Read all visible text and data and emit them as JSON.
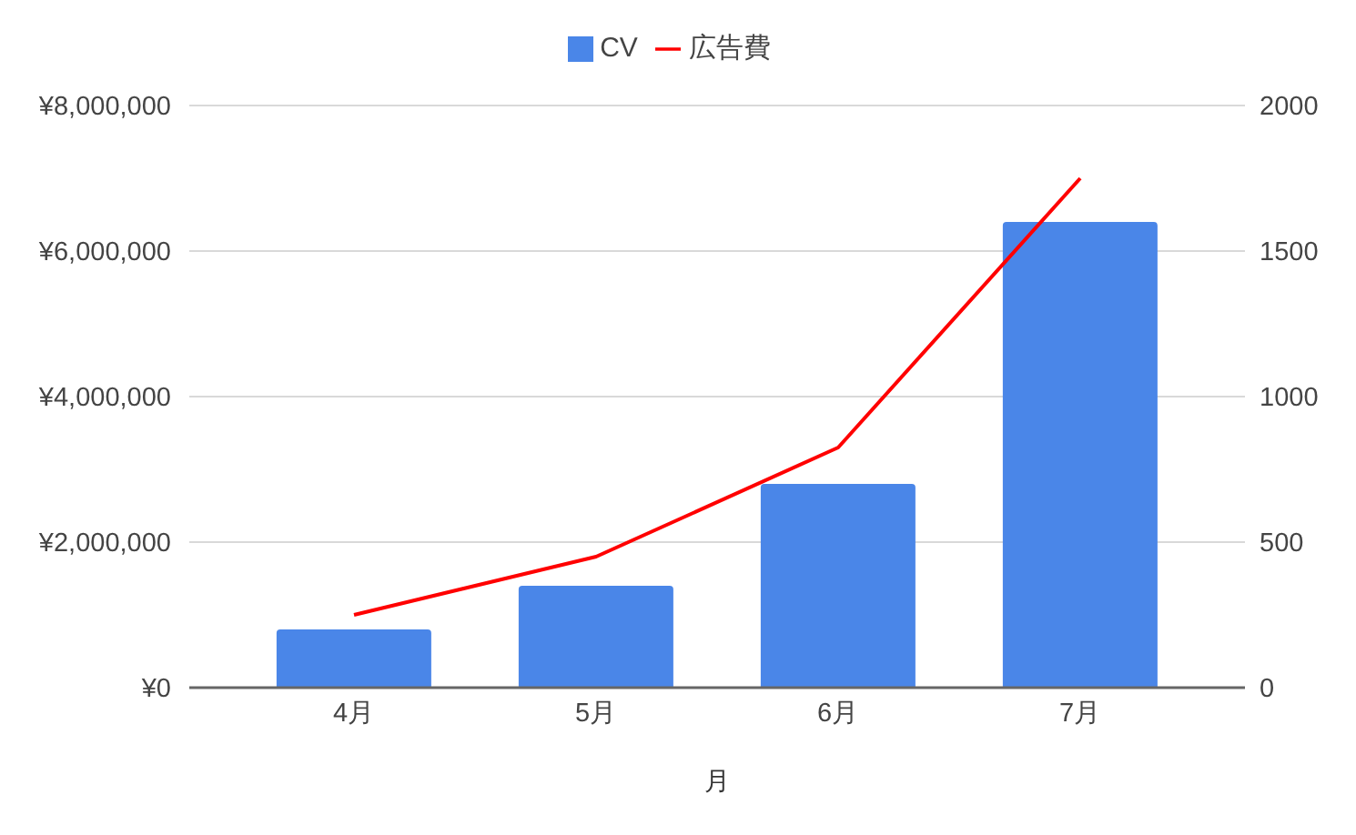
{
  "chart_data": {
    "type": "bar",
    "categories": [
      "4月",
      "5月",
      "6月",
      "7月"
    ],
    "xlabel": "月",
    "series": [
      {
        "name": "CV",
        "color": "#4a86e8",
        "axis": "y2",
        "values": [
          200,
          350,
          700,
          1600
        ]
      },
      {
        "name": "広告費",
        "type": "line",
        "color": "#ff0000",
        "values": [
          1000000,
          1800000,
          3300000,
          7000000
        ]
      }
    ],
    "ylim": [
      0,
      8000000
    ],
    "yticks": [
      {
        "value": 0,
        "label": "¥0"
      },
      {
        "value": 2000000,
        "label": "¥2,000,000"
      },
      {
        "value": 4000000,
        "label": "¥4,000,000"
      },
      {
        "value": 6000000,
        "label": "¥6,000,000"
      },
      {
        "value": 8000000,
        "label": "¥8,000,000"
      }
    ],
    "y2lim": [
      0,
      2000
    ],
    "y2ticks": [
      0,
      500,
      1000,
      1500,
      2000
    ],
    "grid": "y",
    "legend": "top",
    "marker": "none"
  }
}
